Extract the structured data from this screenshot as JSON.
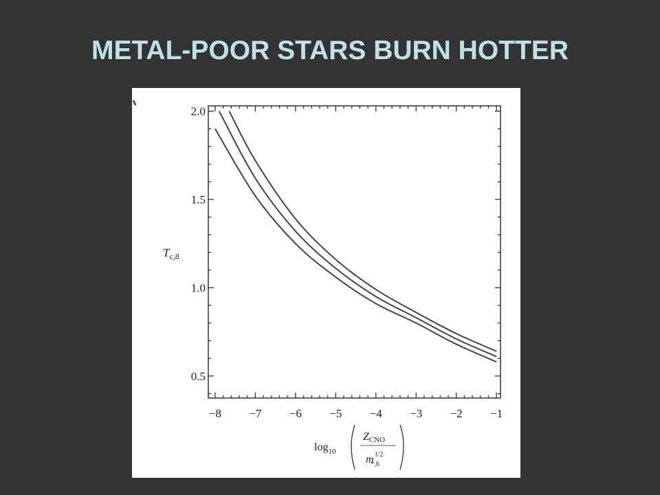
{
  "slide": {
    "title": "METAL-POOR STARS BURN HOTTER",
    "title_color": "#bfe2e6",
    "background": "#333333"
  },
  "chart_data": {
    "type": "line",
    "title": "",
    "xlabel": "log10(Z_CNO / m_*,6^(1/2))",
    "xlabel_parts": {
      "log": "log",
      "log_sub": "10",
      "num": "Z",
      "num_sub": "CNO",
      "den": "m",
      "den_sup": "1/2",
      "den_sub": "*,6"
    },
    "ylabel": "T_c,8",
    "ylabel_parts": {
      "main": "T",
      "sub": "c,8"
    },
    "xlim": [
      -8.17,
      -0.9
    ],
    "ylim": [
      0.375,
      2.03
    ],
    "xticks": [
      -8,
      -7,
      -6,
      -5,
      -4,
      -3,
      -2,
      -1
    ],
    "xtick_labels": [
      "−8",
      "−7",
      "−6",
      "−5",
      "−4",
      "−3",
      "−2",
      "−1"
    ],
    "yticks": [
      0.5,
      1.0,
      1.5,
      2.0
    ],
    "ytick_labels": [
      "0.5",
      "1.0",
      "1.5",
      "2.0"
    ],
    "grid": false,
    "line_color": "#444444",
    "series": [
      {
        "x": [
          -8,
          -7,
          -6,
          -5,
          -4,
          -3,
          -2,
          -1
        ],
        "y": [
          1.9,
          1.52,
          1.25,
          1.06,
          0.91,
          0.8,
          0.68,
          0.58
        ]
      },
      {
        "x": [
          -7.9,
          -7,
          -6,
          -5,
          -4,
          -3,
          -2,
          -1
        ],
        "y": [
          2.0,
          1.62,
          1.32,
          1.11,
          0.95,
          0.83,
          0.71,
          0.61
        ]
      },
      {
        "x": [
          -7.65,
          -7,
          -6,
          -5,
          -4,
          -3,
          -2,
          -1
        ],
        "y": [
          2.0,
          1.72,
          1.39,
          1.16,
          0.99,
          0.86,
          0.74,
          0.64
        ]
      }
    ]
  }
}
